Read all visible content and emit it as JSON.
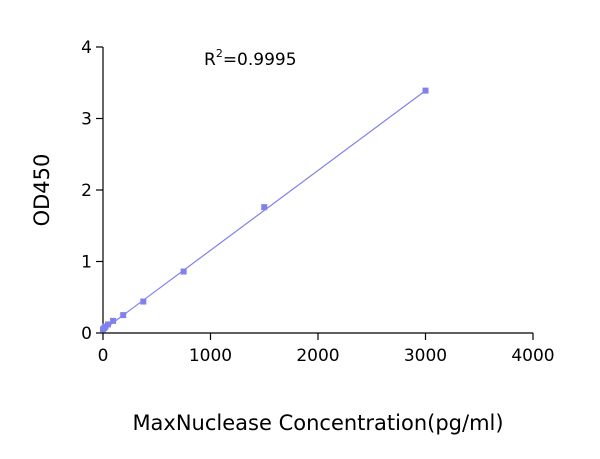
{
  "chart_data": {
    "type": "scatter",
    "title": "",
    "xlabel": "MaxNuclease Concentration(pg/ml)",
    "ylabel": "OD450",
    "xlim": [
      0,
      4000
    ],
    "ylim": [
      0,
      4
    ],
    "x_ticks": [
      0,
      1000,
      2000,
      3000,
      4000
    ],
    "y_ticks": [
      0,
      1,
      2,
      3,
      4
    ],
    "x_tick_labels": [
      "0",
      "1000",
      "2000",
      "3000",
      "4000"
    ],
    "y_tick_labels": [
      "0",
      "1",
      "2",
      "3",
      "4"
    ],
    "grid": false,
    "annotation": {
      "base": "R",
      "sup": "2",
      "rest": "=0.9995"
    },
    "series": [
      {
        "color": "#8080ee",
        "x": [
          0,
          12,
          23,
          47,
          94,
          188,
          375,
          750,
          1500,
          3000
        ],
        "y": [
          0.05,
          0.07,
          0.09,
          0.12,
          0.17,
          0.25,
          0.44,
          0.86,
          1.76,
          3.39
        ]
      }
    ],
    "fit_line": {
      "x": [
        0,
        3000
      ],
      "y": [
        0.04,
        3.39
      ],
      "color": "#8080ee"
    }
  }
}
